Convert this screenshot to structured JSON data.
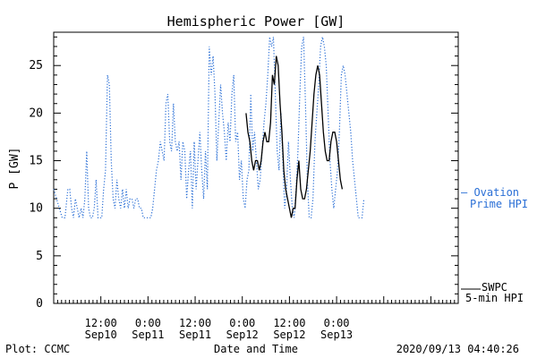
{
  "chart_data": {
    "type": "line",
    "title": "Hemispheric Power [GW]",
    "ylabel": "P [GW]",
    "xlabel": "Date and Time",
    "ylim": [
      0,
      28.5
    ],
    "yticks": [
      0,
      5,
      10,
      15,
      20,
      25
    ],
    "xlim": [
      0,
      4.29
    ],
    "x_unit_note": "days from 2020-09-09 00:00 UT",
    "xticks": [
      {
        "x": 0.5,
        "line1": "12:00",
        "line2": "Sep10"
      },
      {
        "x": 1.0,
        "line1": "0:00",
        "line2": "Sep11"
      },
      {
        "x": 1.5,
        "line1": "12:00",
        "line2": "Sep11"
      },
      {
        "x": 2.0,
        "line1": "0:00",
        "line2": "Sep12"
      },
      {
        "x": 2.5,
        "line1": "12:00",
        "line2": "Sep12"
      },
      {
        "x": 3.0,
        "line1": "0:00",
        "line2": "Sep13"
      }
    ],
    "grid": false,
    "series": [
      {
        "name": "Ovation Prime HPI",
        "label_line1": "— Ovation",
        "label_line2": "Prime HPI",
        "color": "#2a6fd6",
        "style": "dotted",
        "points": [
          [
            0.0,
            12
          ],
          [
            0.03,
            11
          ],
          [
            0.06,
            10
          ],
          [
            0.09,
            9
          ],
          [
            0.12,
            9
          ],
          [
            0.15,
            12
          ],
          [
            0.17,
            12
          ],
          [
            0.19,
            10
          ],
          [
            0.21,
            9
          ],
          [
            0.23,
            11
          ],
          [
            0.25,
            10
          ],
          [
            0.27,
            9
          ],
          [
            0.29,
            10
          ],
          [
            0.31,
            9
          ],
          [
            0.33,
            11
          ],
          [
            0.35,
            16
          ],
          [
            0.37,
            10
          ],
          [
            0.39,
            9
          ],
          [
            0.41,
            9
          ],
          [
            0.43,
            10
          ],
          [
            0.45,
            13
          ],
          [
            0.47,
            9
          ],
          [
            0.49,
            9
          ],
          [
            0.51,
            9
          ],
          [
            0.53,
            12
          ],
          [
            0.55,
            14
          ],
          [
            0.57,
            24
          ],
          [
            0.59,
            23
          ],
          [
            0.61,
            15
          ],
          [
            0.63,
            11
          ],
          [
            0.65,
            10
          ],
          [
            0.67,
            13
          ],
          [
            0.69,
            11
          ],
          [
            0.71,
            10
          ],
          [
            0.73,
            12
          ],
          [
            0.75,
            10
          ],
          [
            0.77,
            12
          ],
          [
            0.79,
            10
          ],
          [
            0.81,
            11
          ],
          [
            0.83,
            11
          ],
          [
            0.85,
            10
          ],
          [
            0.87,
            11
          ],
          [
            0.89,
            11
          ],
          [
            0.91,
            10
          ],
          [
            0.93,
            10
          ],
          [
            0.95,
            9
          ],
          [
            0.97,
            9
          ],
          [
            0.99,
            9
          ],
          [
            1.01,
            9
          ],
          [
            1.03,
            9
          ],
          [
            1.05,
            10
          ],
          [
            1.07,
            12
          ],
          [
            1.09,
            14
          ],
          [
            1.11,
            15
          ],
          [
            1.13,
            17
          ],
          [
            1.15,
            16
          ],
          [
            1.17,
            15
          ],
          [
            1.19,
            21
          ],
          [
            1.21,
            22
          ],
          [
            1.23,
            17
          ],
          [
            1.25,
            16
          ],
          [
            1.27,
            21
          ],
          [
            1.29,
            17
          ],
          [
            1.31,
            16
          ],
          [
            1.33,
            17
          ],
          [
            1.35,
            13
          ],
          [
            1.37,
            17
          ],
          [
            1.39,
            16
          ],
          [
            1.41,
            11
          ],
          [
            1.43,
            14
          ],
          [
            1.45,
            16
          ],
          [
            1.47,
            10
          ],
          [
            1.49,
            17
          ],
          [
            1.51,
            12
          ],
          [
            1.53,
            15
          ],
          [
            1.55,
            18
          ],
          [
            1.57,
            14
          ],
          [
            1.59,
            11
          ],
          [
            1.61,
            16
          ],
          [
            1.63,
            12
          ],
          [
            1.65,
            27
          ],
          [
            1.67,
            24
          ],
          [
            1.69,
            26
          ],
          [
            1.71,
            22
          ],
          [
            1.73,
            15
          ],
          [
            1.75,
            19
          ],
          [
            1.77,
            23
          ],
          [
            1.79,
            20
          ],
          [
            1.81,
            18
          ],
          [
            1.83,
            15
          ],
          [
            1.85,
            19
          ],
          [
            1.87,
            17
          ],
          [
            1.89,
            22
          ],
          [
            1.91,
            24
          ],
          [
            1.93,
            17
          ],
          [
            1.95,
            18
          ],
          [
            1.97,
            13
          ],
          [
            1.99,
            15
          ],
          [
            2.01,
            11
          ],
          [
            2.03,
            10
          ],
          [
            2.05,
            13
          ],
          [
            2.07,
            14
          ],
          [
            2.09,
            22
          ],
          [
            2.11,
            16
          ],
          [
            2.13,
            18
          ],
          [
            2.15,
            15
          ],
          [
            2.17,
            12
          ],
          [
            2.19,
            13
          ],
          [
            2.21,
            16
          ],
          [
            2.23,
            19
          ],
          [
            2.25,
            21
          ],
          [
            2.27,
            24
          ],
          [
            2.29,
            28
          ],
          [
            2.31,
            27
          ],
          [
            2.33,
            28
          ],
          [
            2.35,
            22
          ],
          [
            2.37,
            16
          ],
          [
            2.39,
            14
          ],
          [
            2.41,
            20
          ],
          [
            2.43,
            15
          ],
          [
            2.45,
            10
          ],
          [
            2.47,
            12
          ],
          [
            2.49,
            17
          ],
          [
            2.51,
            13
          ],
          [
            2.53,
            10
          ],
          [
            2.55,
            9
          ],
          [
            2.57,
            12
          ],
          [
            2.59,
            16
          ],
          [
            2.61,
            22
          ],
          [
            2.63,
            27
          ],
          [
            2.65,
            28
          ],
          [
            2.67,
            21
          ],
          [
            2.69,
            13
          ],
          [
            2.71,
            9
          ],
          [
            2.73,
            9
          ],
          [
            2.75,
            11
          ],
          [
            2.77,
            17
          ],
          [
            2.79,
            20
          ],
          [
            2.81,
            23
          ],
          [
            2.83,
            27
          ],
          [
            2.85,
            28
          ],
          [
            2.87,
            27
          ],
          [
            2.89,
            25
          ],
          [
            2.91,
            20
          ],
          [
            2.93,
            15
          ],
          [
            2.95,
            12
          ],
          [
            2.97,
            10
          ],
          [
            2.99,
            12
          ],
          [
            3.01,
            14
          ],
          [
            3.03,
            18
          ],
          [
            3.05,
            24
          ],
          [
            3.07,
            25
          ],
          [
            3.09,
            24
          ],
          [
            3.11,
            22
          ],
          [
            3.13,
            20
          ],
          [
            3.15,
            18
          ],
          [
            3.17,
            15
          ],
          [
            3.19,
            13
          ],
          [
            3.21,
            11
          ],
          [
            3.23,
            9
          ],
          [
            3.25,
            9
          ],
          [
            3.27,
            9
          ],
          [
            3.29,
            11
          ]
        ]
      },
      {
        "name": "SWPC 5-min HPI",
        "label_line1": "SWPC",
        "label_line2": "5-min HPI",
        "color": "#000000",
        "style": "solid",
        "points": [
          [
            2.04,
            20
          ],
          [
            2.06,
            18
          ],
          [
            2.08,
            17
          ],
          [
            2.1,
            15
          ],
          [
            2.12,
            14
          ],
          [
            2.14,
            15
          ],
          [
            2.16,
            15
          ],
          [
            2.18,
            14
          ],
          [
            2.2,
            15
          ],
          [
            2.22,
            17
          ],
          [
            2.24,
            18
          ],
          [
            2.26,
            17
          ],
          [
            2.28,
            17
          ],
          [
            2.3,
            19
          ],
          [
            2.32,
            24
          ],
          [
            2.34,
            23
          ],
          [
            2.36,
            26
          ],
          [
            2.38,
            25
          ],
          [
            2.4,
            21
          ],
          [
            2.42,
            18
          ],
          [
            2.44,
            14
          ],
          [
            2.46,
            12
          ],
          [
            2.48,
            11
          ],
          [
            2.5,
            10
          ],
          [
            2.52,
            9
          ],
          [
            2.54,
            10
          ],
          [
            2.56,
            10
          ],
          [
            2.58,
            13
          ],
          [
            2.6,
            15
          ],
          [
            2.62,
            12
          ],
          [
            2.64,
            11
          ],
          [
            2.66,
            11
          ],
          [
            2.68,
            12
          ],
          [
            2.7,
            14
          ],
          [
            2.72,
            16
          ],
          [
            2.74,
            19
          ],
          [
            2.76,
            22
          ],
          [
            2.78,
            24
          ],
          [
            2.8,
            25
          ],
          [
            2.82,
            24
          ],
          [
            2.84,
            21
          ],
          [
            2.86,
            18
          ],
          [
            2.88,
            16
          ],
          [
            2.9,
            15
          ],
          [
            2.92,
            15
          ],
          [
            2.94,
            17
          ],
          [
            2.96,
            18
          ],
          [
            2.98,
            18
          ],
          [
            3.0,
            17
          ],
          [
            3.02,
            15
          ],
          [
            3.04,
            13
          ],
          [
            3.06,
            12
          ]
        ]
      }
    ]
  },
  "footer": {
    "left": "Plot: CCMC",
    "right": "2020/09/13 04:40:26"
  }
}
